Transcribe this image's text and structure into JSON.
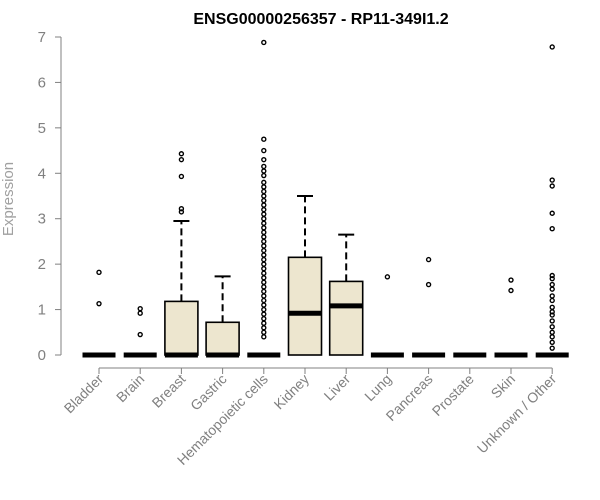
{
  "chart_data": {
    "type": "boxplot",
    "title": "ENSG00000256357 - RP11-349I1.2",
    "ylabel": "Expression",
    "xlabel": "",
    "ylim": [
      0,
      7
    ],
    "yticks": [
      "0",
      "1",
      "2",
      "3",
      "4",
      "5",
      "6",
      "7"
    ],
    "box_fill": "#ede6cf",
    "categories": [
      "Bladder",
      "Brain",
      "Breast",
      "Gastric",
      "Hematopoietic cells",
      "Kidney",
      "Liver",
      "Lung",
      "Pancreas",
      "Prostate",
      "Skin",
      "Unknown / Other"
    ],
    "boxes": [
      {
        "q1": 0,
        "median": 0,
        "q3": 0,
        "whisker_low": 0,
        "whisker_high": 0,
        "outliers": [
          1.82,
          1.13
        ]
      },
      {
        "q1": 0,
        "median": 0,
        "q3": 0,
        "whisker_low": 0,
        "whisker_high": 0,
        "outliers": [
          1.02,
          0.92,
          0.45
        ]
      },
      {
        "q1": 0,
        "median": 0,
        "q3": 1.18,
        "whisker_low": 0,
        "whisker_high": 2.95,
        "outliers": [
          4.43,
          4.3,
          3.93,
          3.22,
          3.15
        ]
      },
      {
        "q1": 0,
        "median": 0,
        "q3": 0.72,
        "whisker_low": 0,
        "whisker_high": 1.73,
        "outliers": []
      },
      {
        "q1": 0,
        "median": 0,
        "q3": 0,
        "whisker_low": 0,
        "whisker_high": 0,
        "outliers": [
          6.88,
          4.75,
          4.5,
          4.3,
          4.15,
          4.05,
          3.95,
          3.8,
          3.7,
          3.6,
          3.5,
          3.4,
          3.3,
          3.2,
          3.1,
          3.0,
          2.9,
          2.8,
          2.7,
          2.6,
          2.5,
          2.4,
          2.3,
          2.2,
          2.1,
          2.0,
          1.9,
          1.8,
          1.7,
          1.6,
          1.5,
          1.4,
          1.3,
          1.2,
          1.1,
          1.0,
          0.9,
          0.8,
          0.7,
          0.6,
          0.5,
          0.4
        ]
      },
      {
        "q1": 0,
        "median": 0.92,
        "q3": 2.15,
        "whisker_low": 0,
        "whisker_high": 3.5,
        "outliers": []
      },
      {
        "q1": 0,
        "median": 1.08,
        "q3": 1.62,
        "whisker_low": 0,
        "whisker_high": 2.65,
        "outliers": []
      },
      {
        "q1": 0,
        "median": 0,
        "q3": 0,
        "whisker_low": 0,
        "whisker_high": 0,
        "outliers": [
          1.72
        ]
      },
      {
        "q1": 0,
        "median": 0,
        "q3": 0,
        "whisker_low": 0,
        "whisker_high": 0,
        "outliers": [
          2.1,
          1.55
        ]
      },
      {
        "q1": 0,
        "median": 0,
        "q3": 0,
        "whisker_low": 0,
        "whisker_high": 0,
        "outliers": []
      },
      {
        "q1": 0,
        "median": 0,
        "q3": 0,
        "whisker_low": 0,
        "whisker_high": 0,
        "outliers": [
          1.65,
          1.42
        ]
      },
      {
        "q1": 0,
        "median": 0,
        "q3": 0,
        "whisker_low": 0,
        "whisker_high": 0,
        "outliers": [
          6.78,
          3.85,
          3.72,
          3.12,
          2.78,
          1.75,
          1.68,
          1.55,
          1.45,
          1.3,
          1.2,
          1.05,
          0.95,
          0.88,
          0.75,
          0.62,
          0.5,
          0.4,
          0.28,
          0.15
        ]
      }
    ]
  }
}
